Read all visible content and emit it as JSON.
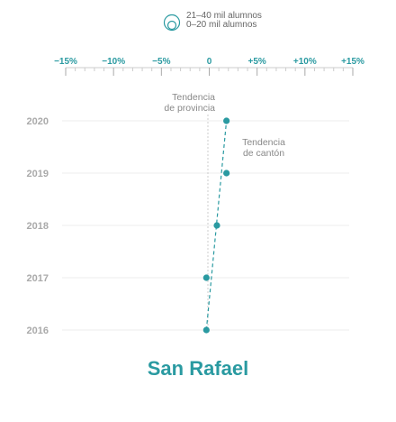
{
  "legend": {
    "items": [
      "21–40 mil alumnos",
      "0–20 mil alumnos"
    ],
    "icon": "nested-circles-icon"
  },
  "colors": {
    "accent": "#2a9aa1",
    "tick_label": "#2a9aa1",
    "year_label": "#aaaaaa",
    "annotation": "#888888",
    "gridline": "#eeeeee",
    "zero_line": "#cccccc"
  },
  "chart_data": {
    "type": "scatter",
    "title": "San Rafael",
    "xlim": [
      -15,
      15
    ],
    "x_ticks": [
      -15,
      -10,
      -5,
      0,
      5,
      10,
      15
    ],
    "x_tick_labels": [
      "−15%",
      "−10%",
      "−5%",
      "0",
      "+5%",
      "+10%",
      "+15%"
    ],
    "categories": [
      "2020",
      "2019",
      "2018",
      "2017",
      "2016"
    ],
    "values": [
      1.8,
      1.8,
      0.8,
      -0.3,
      -0.3
    ],
    "trend_line": true,
    "grid": true,
    "annotations": [
      {
        "text": [
          "Tendencia",
          "de provincia"
        ],
        "at_x": 0
      },
      {
        "text": [
          "Tendencia",
          "de cantón"
        ],
        "at_x": 5.5
      }
    ]
  }
}
